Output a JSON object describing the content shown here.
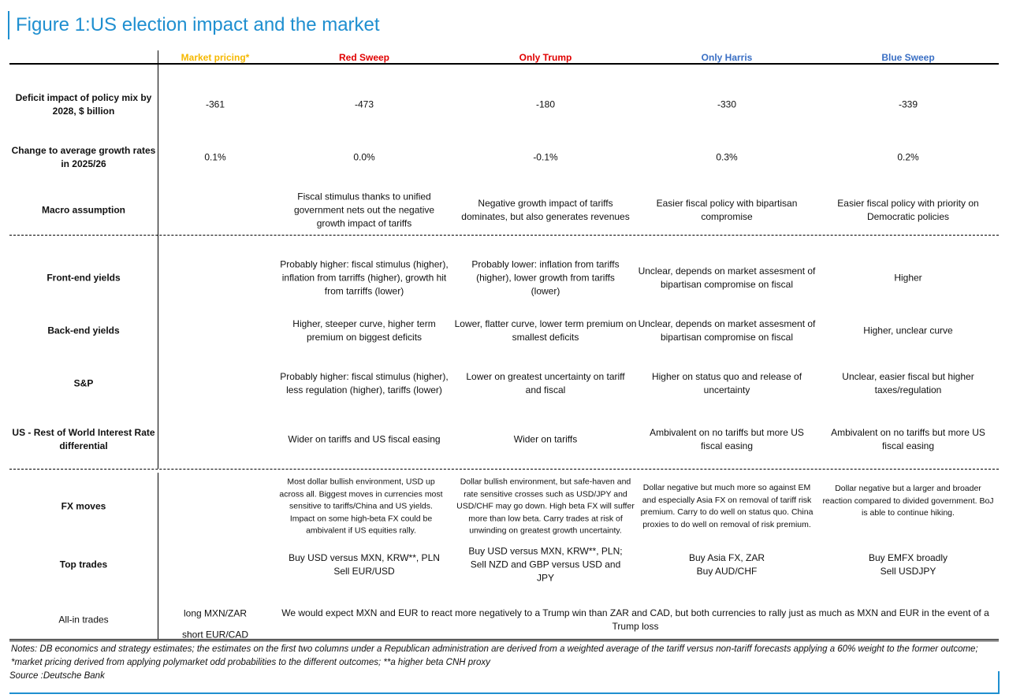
{
  "title": "Figure 1:US election impact and the market",
  "columns": [
    {
      "label": "Market pricing*",
      "color": "#f5b800"
    },
    {
      "label": "Red Sweep",
      "color": "#e00000"
    },
    {
      "label": "Only Trump",
      "color": "#e00000"
    },
    {
      "label": "Only Harris",
      "color": "#3a6fc4"
    },
    {
      "label": "Blue Sweep",
      "color": "#3a6fc4"
    }
  ],
  "rows": {
    "deficit": {
      "label": "Deficit impact of policy mix by 2028, $ billion",
      "values": [
        "-361",
        "-473",
        "-180",
        "-330",
        "-339"
      ]
    },
    "growth": {
      "label": "Change to average growth rates in 2025/26",
      "values": [
        "0.1%",
        "0.0%",
        "-0.1%",
        "0.3%",
        "0.2%"
      ]
    },
    "macro": {
      "label": "Macro assumption",
      "values": [
        "",
        "Fiscal stimulus thanks to unified government nets out the negative growth impact of tariffs",
        "Negative growth impact of tariffs dominates, but also generates revenues",
        "Easier fiscal policy with bipartisan compromise",
        "Easier fiscal policy with priority on Democratic policies"
      ]
    },
    "front_end": {
      "label": "Front-end yields",
      "values": [
        "",
        "Probably higher: fiscal stimulus (higher), inflation from tarriffs (higher), growth hit from tarriffs (lower)",
        "Probably lower: inflation from tariffs (higher), lower growth from tariffs (lower)",
        "Unclear, depends on market assesment of bipartisan compromise on fiscal",
        "Higher"
      ]
    },
    "back_end": {
      "label": "Back-end yields",
      "values": [
        "",
        "Higher, steeper curve, higher term premium on biggest deficits",
        "Lower, flatter curve, lower term premium on smallest deficits",
        "Unclear, depends on market assesment of bipartisan compromise on fiscal",
        "Higher, unclear curve"
      ]
    },
    "sp": {
      "label": "S&P",
      "values": [
        "",
        "Probably higher: fiscal stimulus (higher), less regulation (higher), tariffs (lower)",
        "Lower on greatest uncertainty on tariff and fiscal",
        "Higher on status quo and release of uncertainty",
        "Unclear, easier fiscal but higher taxes/regulation"
      ]
    },
    "rate_diff": {
      "label": "US - Rest of World Interest Rate differential",
      "values": [
        "",
        "Wider on tariffs and US fiscal easing",
        "Wider on tariffs",
        "Ambivalent on no tariffs but more US fiscal easing",
        "Ambivalent on no tariffs but more US fiscal easing"
      ]
    },
    "fx": {
      "label": "FX moves",
      "values": [
        "",
        "Most dollar bullish environment, USD up across all. Biggest moves in currencies most sensitive to tariffs/China and US yields. Impact on some high-beta FX could be ambivalent if US equities rally.",
        "Dollar bullish environment, but safe-haven and rate sensitive crosses such as USD/JPY and USD/CHF may go down. High beta FX will suffer more than low beta. Carry trades at risk of unwinding on greatest growth uncertainty.",
        "Dollar negative but much more so against EM and especially Asia FX on removal of tariff risk premium. Carry to do well on status quo. China proxies to do well on removal of risk premium.",
        "Dollar negative but a larger and broader reaction compared to divided government. BoJ is able to continue hiking."
      ]
    },
    "top_trades": {
      "label": "Top trades",
      "values": [
        "",
        "Buy USD versus MXN, KRW**, PLN Sell EUR/USD",
        "Buy USD versus MXN, KRW**, PLN; Sell NZD and GBP versus USD and JPY",
        "Buy Asia FX, ZAR Buy AUD/CHF",
        "Buy EMFX broadly Sell USDJPY"
      ]
    },
    "all_in": {
      "label": "All-in trades",
      "market_line1": "long MXN/ZAR",
      "market_line2": "short EUR/CAD",
      "text": "We would expect MXN and EUR to react more negatively to a Trump win than ZAR and CAD, but both currencies to rally just as much as MXN and EUR in the event of a Trump loss"
    }
  },
  "notes": "Notes: DB economics and strategy estimates; the estimates on the first two columns under a Republican administration are derived from a weighted average of the tariff versus non-tariff forecasts applying a 60% weight to the former outcome; *market pricing derived from applying polymarket odd probabilities to the different outcomes; **a higher beta CNH proxy",
  "source": "Source :Deutsche Bank"
}
